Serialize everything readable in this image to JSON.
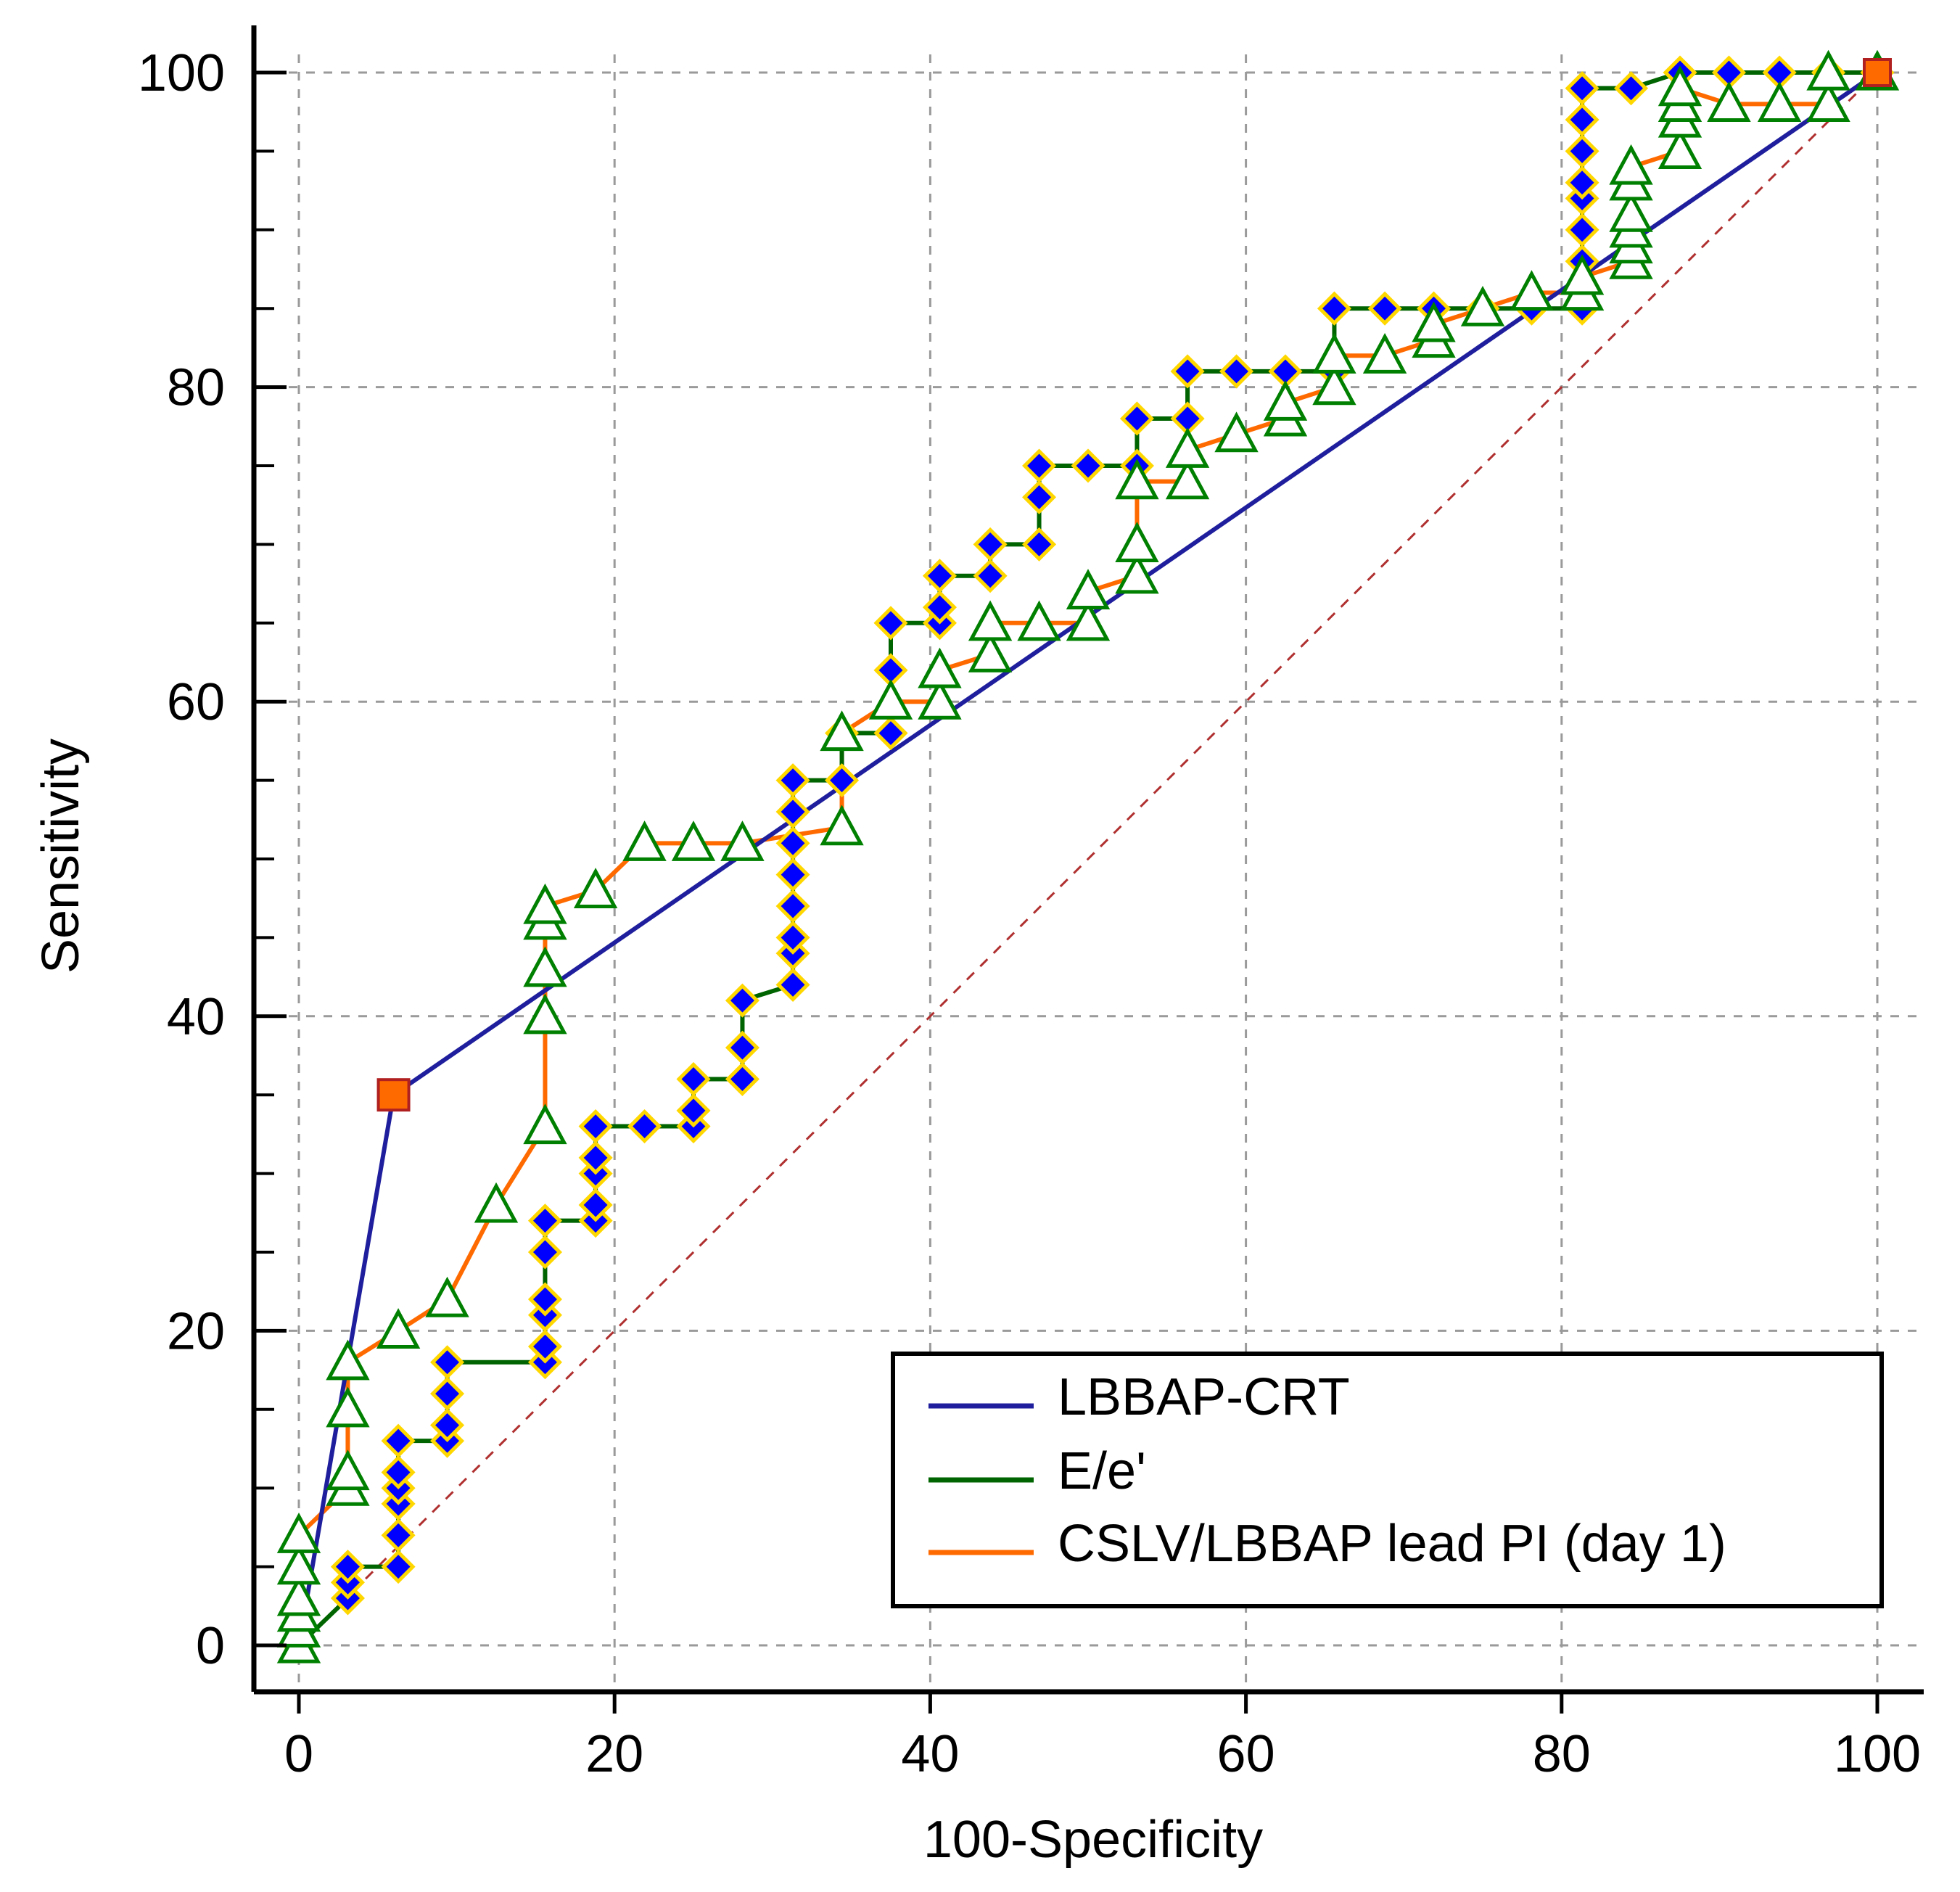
{
  "chart_data": {
    "type": "line",
    "xlabel": "100-Specificity",
    "ylabel": "Sensitivity",
    "xlim": [
      0,
      100
    ],
    "ylim": [
      0,
      100
    ],
    "x_ticks": [
      0,
      20,
      40,
      60,
      80,
      100
    ],
    "y_ticks": [
      0,
      20,
      40,
      60,
      80,
      100
    ],
    "grid": true,
    "legend_position": "bottom-right",
    "reference_line": {
      "from": [
        0,
        0
      ],
      "to": [
        100,
        100
      ],
      "style": "dashed",
      "color": "#b03030"
    },
    "series": [
      {
        "name": "LBBAP-CRT",
        "color": "#1f1f9e",
        "marker": "square",
        "marker_color": "#ff6a00",
        "marker_points": [
          [
            6,
            35
          ]
        ],
        "x": [
          0,
          6,
          100
        ],
        "y": [
          0,
          35,
          100
        ]
      },
      {
        "name": "E/e'",
        "color": "#006400",
        "marker": "diamond",
        "marker_color": "#0000ff",
        "marker_edge": "#ffd700",
        "x": [
          0,
          3.1,
          3.1,
          3.1,
          6.3,
          6.3,
          6.3,
          6.3,
          6.3,
          6.3,
          9.4,
          9.4,
          9.4,
          9.4,
          15.6,
          15.6,
          15.6,
          15.6,
          15.6,
          15.6,
          18.8,
          18.8,
          18.8,
          18.8,
          18.8,
          21.9,
          25,
          25,
          25,
          28.1,
          28.1,
          28.1,
          31.3,
          31.3,
          31.3,
          31.3,
          31.3,
          31.3,
          31.3,
          31.3,
          34.4,
          34.4,
          37.5,
          37.5,
          37.5,
          40.6,
          40.6,
          40.6,
          43.8,
          43.8,
          46.9,
          46.9,
          46.9,
          50,
          53.1,
          53.1,
          56.3,
          56.3,
          59.4,
          62.5,
          65.6,
          65.6,
          68.8,
          71.9,
          75,
          78.1,
          81.3,
          81.3,
          81.3,
          81.3,
          81.3,
          81.3,
          81.3,
          81.3,
          84.4,
          87.5,
          90.6,
          93.8,
          96.9,
          100
        ],
        "y": [
          0,
          3,
          4,
          5,
          5,
          7,
          9,
          10,
          11,
          13,
          13,
          14,
          16,
          18,
          18,
          19,
          21,
          22,
          25,
          27,
          27,
          28,
          30,
          31,
          33,
          33,
          33,
          34,
          36,
          36,
          38,
          41,
          42,
          44,
          45,
          47,
          49,
          51,
          53,
          55,
          55,
          58,
          58,
          62,
          65,
          65,
          66,
          68,
          68,
          70,
          70,
          73,
          75,
          75,
          75,
          78,
          78,
          81,
          81,
          81,
          81,
          85,
          85,
          85,
          85,
          85,
          85,
          88,
          90,
          92,
          93,
          95,
          97,
          99,
          99,
          100,
          100,
          100,
          100,
          100
        ]
      },
      {
        "name": "CSLV/LBBAP lead PI (day 1)",
        "color": "#ff6a00",
        "marker": "triangle",
        "marker_color": "#ffffff",
        "marker_edge": "#008000",
        "x": [
          0,
          0,
          0,
          0,
          0,
          0,
          3.1,
          3.1,
          3.1,
          3.1,
          6.3,
          9.4,
          12.5,
          15.6,
          15.6,
          15.6,
          15.6,
          15.6,
          18.8,
          21.9,
          25,
          28.1,
          34.4,
          34.4,
          37.5,
          40.6,
          40.6,
          43.8,
          43.8,
          46.9,
          50,
          50,
          53.1,
          53.1,
          53.1,
          56.3,
          56.3,
          59.4,
          62.5,
          62.5,
          65.6,
          65.6,
          68.8,
          71.9,
          71.9,
          75,
          78.1,
          81.3,
          81.3,
          84.4,
          84.4,
          84.4,
          84.4,
          84.4,
          84.4,
          87.5,
          87.5,
          87.5,
          87.5,
          90.6,
          93.8,
          96.9,
          96.9,
          100
        ],
        "y": [
          0,
          1,
          2,
          3,
          5,
          7,
          10,
          11,
          15,
          18,
          20,
          22,
          28,
          33,
          40,
          43,
          46,
          47,
          48,
          51,
          51,
          51,
          52,
          58,
          60,
          60,
          62,
          63,
          65,
          65,
          65,
          67,
          68,
          70,
          74,
          74,
          76,
          77,
          78,
          79,
          80,
          82,
          82,
          83,
          84,
          85,
          86,
          86,
          87,
          88,
          89,
          90,
          91,
          93,
          94,
          95,
          97,
          98,
          99,
          98,
          98,
          98,
          100,
          100
        ]
      }
    ]
  }
}
